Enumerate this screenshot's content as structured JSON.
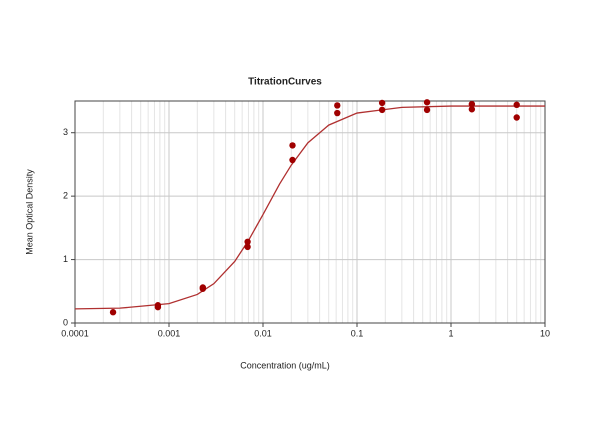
{
  "chart_data": {
    "type": "scatter",
    "title": "TitrationCurves",
    "x_label": "Concentration (ug/mL)",
    "y_label": "Mean Optical Density",
    "xlim": [
      0.0001,
      10
    ],
    "xticks": [
      0.0001,
      0.001,
      0.01,
      0.1,
      1,
      10
    ],
    "x_log": true,
    "ylim": [
      0,
      3.5
    ],
    "yticks": [
      0,
      1,
      2,
      3
    ],
    "grid": true,
    "minor_grid": true,
    "series": [
      {
        "type": "line",
        "color": "#b03030",
        "x": [
          0.0001,
          0.0003,
          0.001,
          0.002,
          0.003,
          0.005,
          0.007,
          0.01,
          0.015,
          0.02,
          0.03,
          0.05,
          0.1,
          0.3,
          1,
          10
        ],
        "values": [
          0.223,
          0.234,
          0.305,
          0.45,
          0.62,
          0.97,
          1.3,
          1.71,
          2.19,
          2.49,
          2.84,
          3.12,
          3.31,
          3.4,
          3.42,
          3.42
        ]
      },
      {
        "type": "scatter",
        "color": "#a00000",
        "x": [
          0.000254,
          0.000762,
          0.000762,
          0.00229,
          0.00229,
          0.00686,
          0.00686,
          0.0206,
          0.0206,
          0.0617,
          0.0617,
          0.185,
          0.185,
          0.556,
          0.556,
          1.667,
          1.667,
          5,
          5
        ],
        "values": [
          0.17,
          0.28,
          0.25,
          0.56,
          0.54,
          1.28,
          1.2,
          2.8,
          2.57,
          3.43,
          3.31,
          3.47,
          3.36,
          3.48,
          3.36,
          3.45,
          3.37,
          3.44,
          3.24
        ]
      }
    ]
  }
}
